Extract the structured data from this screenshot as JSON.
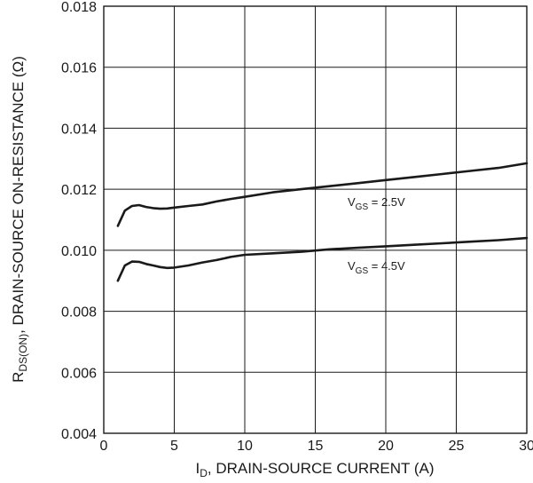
{
  "chart_data": {
    "type": "line",
    "xlabel": {
      "main": "I",
      "sub": "D",
      "rest": ", DRAIN-SOURCE CURRENT (A)"
    },
    "ylabel": {
      "main": "R",
      "sub": "DS(ON)",
      "rest": ", DRAIN-SOURCE ON-RESISTANCE (Ω)"
    },
    "xlim": [
      0,
      30
    ],
    "ylim": [
      0.004,
      0.018
    ],
    "xticks": [
      0,
      5,
      10,
      15,
      20,
      25,
      30
    ],
    "yticks": [
      "0.004",
      "0.006",
      "0.008",
      "0.010",
      "0.012",
      "0.014",
      "0.016",
      "0.018"
    ],
    "grid": true,
    "series": [
      {
        "name": "V_GS = 2.5V",
        "label": {
          "main": "V",
          "sub": "GS",
          "rest": " = 2.5V"
        },
        "x": [
          1.0,
          1.5,
          2.0,
          2.5,
          3.0,
          3.5,
          4.0,
          4.5,
          5.0,
          6.0,
          7.0,
          8.0,
          9.0,
          10.0,
          12.0,
          14.0,
          16.0,
          18.0,
          20.0,
          22.0,
          24.0,
          26.0,
          28.0,
          30.0
        ],
        "y": [
          0.0108,
          0.0113,
          0.01145,
          0.01148,
          0.01142,
          0.01138,
          0.01136,
          0.01137,
          0.0114,
          0.01145,
          0.0115,
          0.0116,
          0.01168,
          0.01175,
          0.0119,
          0.012,
          0.0121,
          0.0122,
          0.0123,
          0.0124,
          0.0125,
          0.0126,
          0.0127,
          0.01285
        ]
      },
      {
        "name": "V_GS = 4.5V",
        "label": {
          "main": "V",
          "sub": "GS",
          "rest": " = 4.5V"
        },
        "x": [
          1.0,
          1.5,
          2.0,
          2.5,
          3.0,
          3.5,
          4.0,
          4.5,
          5.0,
          6.0,
          7.0,
          8.0,
          9.0,
          10.0,
          12.0,
          14.0,
          16.0,
          18.0,
          20.0,
          22.0,
          24.0,
          26.0,
          28.0,
          30.0
        ],
        "y": [
          0.009,
          0.0095,
          0.00963,
          0.00962,
          0.00955,
          0.0095,
          0.00945,
          0.00942,
          0.00943,
          0.0095,
          0.0096,
          0.00968,
          0.00978,
          0.00985,
          0.0099,
          0.00995,
          0.01003,
          0.01008,
          0.01013,
          0.01018,
          0.01023,
          0.01028,
          0.01033,
          0.0104
        ]
      }
    ]
  }
}
